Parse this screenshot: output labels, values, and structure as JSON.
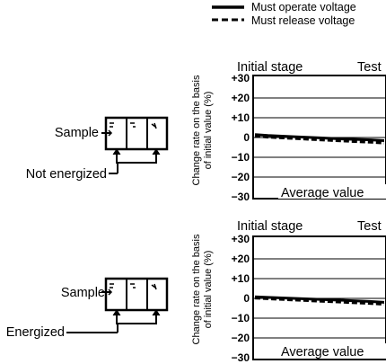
{
  "legend": {
    "solid_label": "Must operate voltage",
    "dashed_label": "Must release voltage"
  },
  "chart_data": [
    {
      "type": "line",
      "ylabel": "Change rate on the basis of initial value (%)",
      "ylabel_lines": [
        "Change rate on the basis",
        "of initial value (%)"
      ],
      "yticks": [
        "+30",
        "+20",
        "+10",
        "0",
        "−10",
        "−20",
        "−30"
      ],
      "ylim": [
        -30,
        30
      ],
      "x": [
        0,
        0.1,
        0.3,
        0.5,
        0.7,
        0.9,
        1.0
      ],
      "series": [
        {
          "name": "Must operate voltage",
          "style": "solid",
          "color": "#000000",
          "values": [
            1.5,
            1.0,
            0.4,
            -0.2,
            -0.8,
            -1.2,
            -1.6
          ]
        },
        {
          "name": "Must release voltage",
          "style": "dashed",
          "color": "#000000",
          "values": [
            0.8,
            0.2,
            -0.5,
            -1.2,
            -1.8,
            -2.4,
            -2.8
          ]
        }
      ],
      "annotations": [
        "Initial stage",
        "Test",
        "Average value"
      ],
      "schematic": {
        "sample_label": "Sample",
        "condition_label": "Not energized"
      }
    },
    {
      "type": "line",
      "ylabel": "Change rate on the basis of initial value (%)",
      "ylabel_lines": [
        "Change rate on the basis",
        "of initial value (%)"
      ],
      "yticks": [
        "+30",
        "+20",
        "+10",
        "0",
        "−10",
        "−20",
        "−30"
      ],
      "ylim": [
        -30,
        30
      ],
      "x": [
        0,
        0.1,
        0.3,
        0.5,
        0.7,
        0.9,
        1.0
      ],
      "series": [
        {
          "name": "Must operate voltage",
          "style": "solid",
          "color": "#000000",
          "values": [
            0.8,
            0.5,
            0.0,
            -0.5,
            -1.0,
            -1.6,
            -2.0
          ]
        },
        {
          "name": "Must release voltage",
          "style": "dashed",
          "color": "#000000",
          "values": [
            0.2,
            -0.2,
            -0.8,
            -1.4,
            -2.0,
            -2.6,
            -3.0
          ]
        }
      ],
      "annotations": [
        "Initial stage",
        "Test",
        "Average value"
      ],
      "schematic": {
        "sample_label": "Sample",
        "condition_label": "Energized"
      }
    }
  ]
}
